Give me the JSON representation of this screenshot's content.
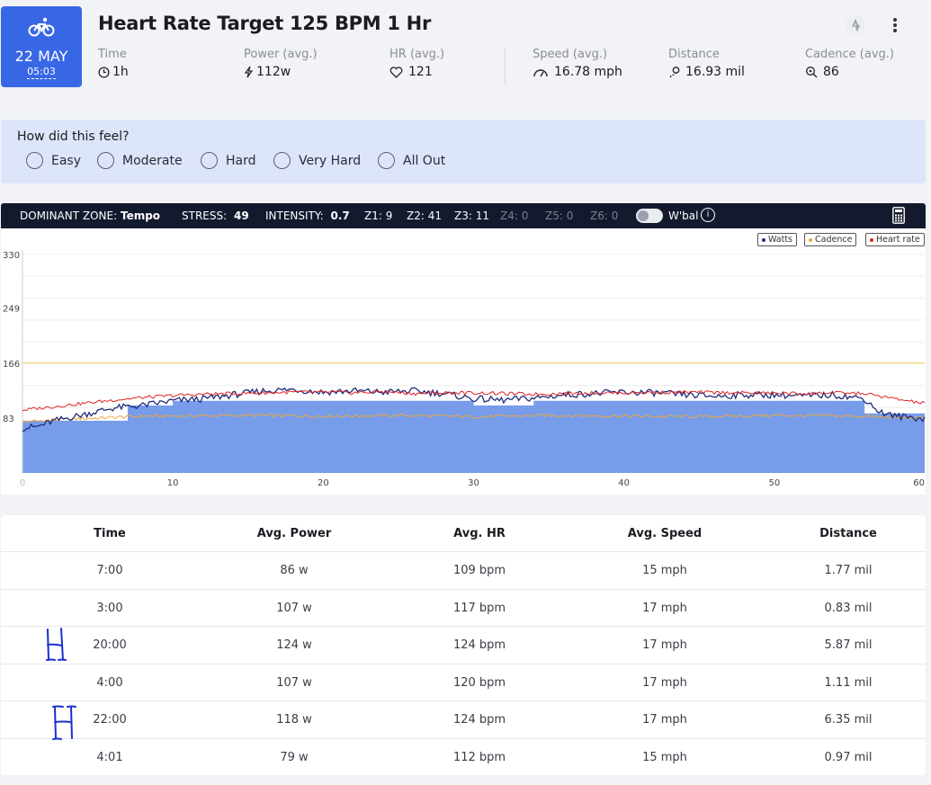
{
  "workout": {
    "date_day": "22 MAY",
    "date_time": "05:03",
    "title": "Heart Rate Target 125 BPM 1 Hr"
  },
  "stats": [
    {
      "label": "Time",
      "value": "1h",
      "icon": "clock-icon"
    },
    {
      "label": "Power (avg.)",
      "value": "112w",
      "icon": "bolt-icon"
    },
    {
      "label": "HR (avg.)",
      "value": "121",
      "icon": "heart-icon"
    },
    {
      "label": "Speed (avg.)",
      "value": "16.78 mph",
      "icon": "speedometer-icon"
    },
    {
      "label": "Distance",
      "value": "16.93 mil",
      "icon": "route-pin-icon"
    },
    {
      "label": "Cadence (avg.)",
      "value": "86",
      "icon": "cadence-icon"
    }
  ],
  "feel": {
    "question": "How did this feel?",
    "options": [
      "Easy",
      "Moderate",
      "Hard",
      "Very Hard",
      "All Out"
    ]
  },
  "zone_bar": {
    "dominant_label": "DOMINANT ZONE:",
    "dominant_value": "Tempo",
    "stress_label": "STRESS:",
    "stress_value": "49",
    "intensity_label": "INTENSITY:",
    "intensity_value": "0.7",
    "z1": "Z1: 9",
    "z2": "Z2: 41",
    "z3": "Z3: 11",
    "z4": "Z4: 0",
    "z5": "Z5: 0",
    "z6": "Z6: 0",
    "wbal_label": "W'bal"
  },
  "chart_data": {
    "type": "line",
    "x_label_ticks": [
      "0",
      "10",
      "20",
      "30",
      "40",
      "50",
      "60"
    ],
    "y_label_ticks": [
      "330",
      "249",
      "166",
      "83"
    ],
    "xlim": [
      0,
      60
    ],
    "ylim": [
      0,
      330
    ],
    "grid": true,
    "legend_position": "top-right",
    "target_level": 166,
    "legend": [
      {
        "name": "Watts",
        "color": "#1f2b7a"
      },
      {
        "name": "Cadence",
        "color": "#e9a93a"
      },
      {
        "name": "Heart rate",
        "color": "#e02424"
      }
    ],
    "area_steps": [
      {
        "x0": 0,
        "x1": 7,
        "y": 79
      },
      {
        "x0": 7,
        "x1": 10,
        "y": 102
      },
      {
        "x0": 10,
        "x1": 30,
        "y": 109
      },
      {
        "x0": 30,
        "x1": 34,
        "y": 102
      },
      {
        "x0": 34,
        "x1": 56,
        "y": 109
      },
      {
        "x0": 56,
        "x1": 60,
        "y": 90
      }
    ],
    "series": [
      {
        "name": "Watts",
        "x": [
          0,
          1,
          2,
          4,
          6,
          8,
          10,
          12,
          14,
          16,
          18,
          20,
          22,
          24,
          26,
          28,
          30,
          32,
          34,
          36,
          38,
          40,
          42,
          44,
          46,
          48,
          50,
          52,
          54,
          56,
          57,
          58,
          60
        ],
        "values": [
          68,
          70,
          78,
          88,
          98,
          102,
          109,
          112,
          118,
          124,
          126,
          122,
          124,
          122,
          124,
          120,
          112,
          110,
          113,
          118,
          120,
          122,
          121,
          118,
          116,
          118,
          118,
          116,
          118,
          112,
          92,
          86,
          82
        ]
      },
      {
        "name": "Cadence",
        "x": [
          0,
          2,
          4,
          6,
          8,
          10,
          15,
          20,
          25,
          30,
          35,
          40,
          45,
          50,
          55,
          58,
          60
        ],
        "values": [
          77,
          80,
          82,
          84,
          86,
          86,
          87,
          86,
          87,
          85,
          87,
          86,
          85,
          87,
          86,
          84,
          82
        ]
      },
      {
        "name": "Heart rate",
        "x": [
          0,
          2,
          4,
          6,
          8,
          10,
          12,
          14,
          16,
          18,
          20,
          22,
          24,
          26,
          28,
          30,
          32,
          34,
          36,
          38,
          40,
          44,
          48,
          52,
          54,
          56,
          58,
          60
        ],
        "values": [
          95,
          100,
          105,
          110,
          114,
          117,
          119,
          120,
          121,
          122,
          122,
          121,
          123,
          120,
          121,
          121,
          120,
          119,
          120,
          121,
          121,
          122,
          121,
          120,
          121,
          120,
          112,
          105
        ]
      }
    ]
  },
  "table": {
    "headers": [
      "Time",
      "Avg. Power",
      "Avg. HR",
      "Avg. Speed",
      "Distance"
    ],
    "rows": [
      [
        "7:00",
        "86 w",
        "109 bpm",
        "15 mph",
        "1.77 mil"
      ],
      [
        "3:00",
        "107 w",
        "117 bpm",
        "17 mph",
        "0.83 mil"
      ],
      [
        "20:00",
        "124 w",
        "124 bpm",
        "17 mph",
        "5.87 mil"
      ],
      [
        "4:00",
        "107 w",
        "120 bpm",
        "17 mph",
        "1.11 mil"
      ],
      [
        "22:00",
        "118 w",
        "124 bpm",
        "17 mph",
        "6.35 mil"
      ],
      [
        "4:01",
        "79 w",
        "112 bpm",
        "15 mph",
        "0.97 mil"
      ]
    ],
    "handwritten_marks": [
      "H",
      "H"
    ]
  },
  "colors": {
    "accent": "#3867e6",
    "area_fill": "#6b94e8",
    "zone_bar_bg": "#141a2e",
    "feel_bg": "#dce5f9",
    "ink": "#1a2fd1"
  }
}
